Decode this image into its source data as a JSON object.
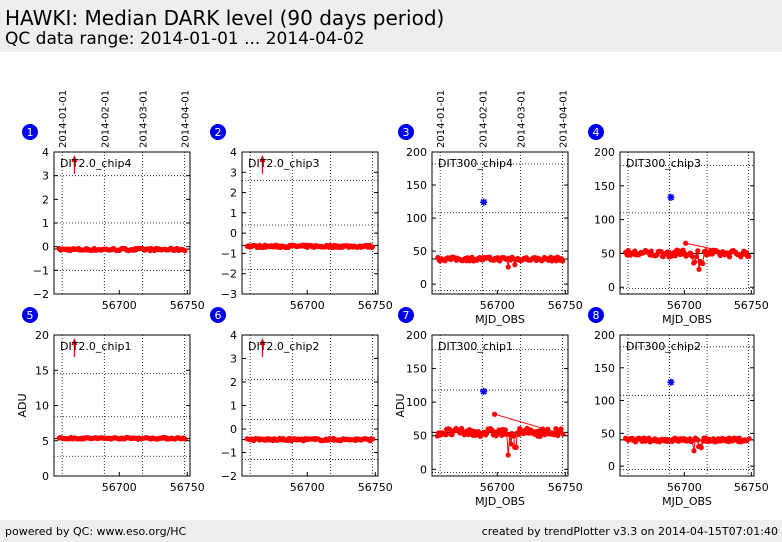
{
  "header": {
    "title": "HAWKI: Median DARK level (90 days period)",
    "subtitle": "QC data range: 2014-01-01 ... 2014-04-02"
  },
  "footer": {
    "left": "powered by QC: www.eso.org/HC",
    "right": "created by trendPlotter v3.3 on 2014-04-15T07:01:40"
  },
  "colors": {
    "data": "#ff0000",
    "outlier": "#0000ff",
    "badge": "#0000ee",
    "header_bg": "#eeeeee"
  },
  "date_axis": {
    "labels": [
      "2014-01-01",
      "2014-02-01",
      "2014-03-01",
      "2014-04-01"
    ],
    "mjd": [
      56658,
      56689,
      56717,
      56748
    ]
  },
  "chart_data": [
    {
      "id": 1,
      "type": "scatter",
      "title": "DIT2.0_chip4",
      "xlabel": "",
      "ylabel": "",
      "xlim": [
        56652,
        56752
      ],
      "ylim": [
        -2,
        4
      ],
      "yticks": [
        -2,
        -1,
        0,
        1,
        2,
        3,
        4
      ],
      "xticks": [
        56700,
        56750
      ],
      "grid_y": [
        -1,
        1,
        3
      ],
      "ref_line": -0.1,
      "level": -0.12,
      "spread": 0.05,
      "clip_arrow_x": 56667,
      "series": []
    },
    {
      "id": 2,
      "type": "scatter",
      "title": "DIT2.0_chip3",
      "xlabel": "",
      "ylabel": "",
      "xlim": [
        56652,
        56752
      ],
      "ylim": [
        -3,
        4
      ],
      "yticks": [
        -3,
        -2,
        -1,
        0,
        1,
        2,
        3,
        4
      ],
      "xticks": [
        56700,
        56750
      ],
      "grid_y": [
        -1.8,
        0.4,
        2.6
      ],
      "ref_line": -0.6,
      "level": -0.65,
      "spread": 0.06,
      "clip_arrow_x": 56667,
      "series": []
    },
    {
      "id": 3,
      "type": "scatter",
      "title": "DIT300_chip4",
      "xlabel": "MJD_OBS",
      "ylabel": "",
      "xlim": [
        56652,
        56752
      ],
      "ylim": [
        -15,
        200
      ],
      "yticks": [
        0,
        50,
        100,
        150,
        200
      ],
      "xticks": [
        56700,
        56750
      ],
      "grid_y": [
        -10,
        108,
        182
      ],
      "ref_line": 38,
      "level": 38,
      "spread": 3,
      "outlier": {
        "x": 56690,
        "y": 124
      },
      "series": []
    },
    {
      "id": 4,
      "type": "scatter",
      "title": "DIT300_chip3",
      "xlabel": "MJD_OBS",
      "ylabel": "",
      "xlim": [
        56652,
        56752
      ],
      "ylim": [
        -10,
        200
      ],
      "yticks": [
        0,
        50,
        100,
        150,
        200
      ],
      "xticks": [
        56700,
        56750
      ],
      "grid_y": [
        -2,
        110,
        180
      ],
      "ref_line": 50,
      "level": 50,
      "spread": 5,
      "outlier": {
        "x": 56690,
        "y": 133
      },
      "series": []
    },
    {
      "id": 5,
      "type": "scatter",
      "title": "DIT2.0_chip1",
      "xlabel": "",
      "ylabel": "ADU",
      "xlim": [
        56652,
        56752
      ],
      "ylim": [
        0,
        20
      ],
      "yticks": [
        0,
        5,
        10,
        15,
        20
      ],
      "xticks": [
        56700,
        56750
      ],
      "grid_y": [
        2.8,
        8.4,
        14.5
      ],
      "ref_line": 5.3,
      "level": 5.35,
      "spread": 0.12,
      "clip_arrow_x": 56667,
      "series": []
    },
    {
      "id": 6,
      "type": "scatter",
      "title": "DIT2.0_chip2",
      "xlabel": "",
      "ylabel": "",
      "xlim": [
        56652,
        56752
      ],
      "ylim": [
        -2,
        4
      ],
      "yticks": [
        -2,
        -1,
        0,
        1,
        2,
        3,
        4
      ],
      "xticks": [
        56700,
        56750
      ],
      "grid_y": [
        -1.3,
        0.4,
        2.1
      ],
      "ref_line": -0.45,
      "level": -0.45,
      "spread": 0.05,
      "clip_arrow_x": 56667,
      "series": []
    },
    {
      "id": 7,
      "type": "scatter",
      "title": "DIT300_chip1",
      "xlabel": "MJD_OBS",
      "ylabel": "ADU",
      "xlim": [
        56652,
        56752
      ],
      "ylim": [
        -10,
        200
      ],
      "yticks": [
        0,
        50,
        100,
        150,
        200
      ],
      "xticks": [
        56700,
        56750
      ],
      "grid_y": [
        -5,
        118,
        178
      ],
      "ref_line": 55,
      "level": 55,
      "spread": 6,
      "outlier": {
        "x": 56690,
        "y": 116
      },
      "series": []
    },
    {
      "id": 8,
      "type": "scatter",
      "title": "DIT300_chip2",
      "xlabel": "MJD_OBS",
      "ylabel": "",
      "xlim": [
        56652,
        56752
      ],
      "ylim": [
        -15,
        200
      ],
      "yticks": [
        0,
        50,
        100,
        150,
        200
      ],
      "xticks": [
        56700,
        56750
      ],
      "grid_y": [
        -5,
        108,
        182
      ],
      "ref_line": 40,
      "level": 40,
      "spread": 3,
      "outlier": {
        "x": 56690,
        "y": 128
      },
      "series": []
    }
  ]
}
